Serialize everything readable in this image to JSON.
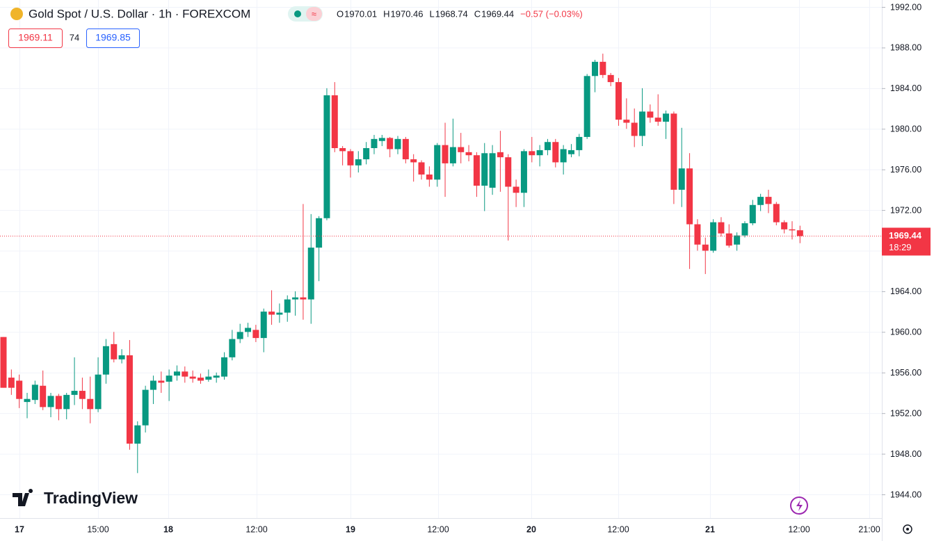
{
  "chart_data": {
    "type": "candlestick",
    "title": "Gold Spot / U.S. Dollar · 1h · FOREXCOM",
    "ohlc": [
      {
        "label": "O",
        "value": 1970.01
      },
      {
        "label": "H",
        "value": 1970.46
      },
      {
        "label": "L",
        "value": 1968.74
      },
      {
        "label": "C",
        "value": 1969.44
      }
    ],
    "change": "−0.57 (−0.03%)",
    "bid": 1969.11,
    "spread": 74,
    "ask": 1969.85,
    "countdown": "18:29",
    "watermark": "TradingView",
    "up_color": "#089981",
    "down_color": "#f23645",
    "x_labels": [
      "17",
      "15:00",
      "18",
      "12:00",
      "19",
      "12:00",
      "20",
      "12:00",
      "21",
      "12:00",
      "21:00"
    ],
    "ylim": [
      1944,
      1992
    ],
    "yticks": [
      {
        "value": 1944,
        "label": "1944.00"
      },
      {
        "value": 1948,
        "label": "1948.00"
      },
      {
        "value": 1952,
        "label": "1952.00"
      },
      {
        "value": 1956,
        "label": "1956.00"
      },
      {
        "value": 1960,
        "label": "1960.00"
      },
      {
        "value": 1964,
        "label": "1964.00"
      },
      {
        "value": 1968,
        "label": "1968.00"
      },
      {
        "value": 1972,
        "label": "1972.00"
      },
      {
        "value": 1976,
        "label": "1976.00"
      },
      {
        "value": 1980,
        "label": "1980.00"
      },
      {
        "value": 1984,
        "label": "1984.00"
      },
      {
        "value": 1988,
        "label": "1988.00"
      },
      {
        "value": 1992,
        "label": "1992.00"
      }
    ],
    "grid": true,
    "open": [
      1959.5,
      1955.5,
      1955.2,
      1953.1,
      1953.3,
      1954.7,
      1952.6,
      1953.7,
      1952.4,
      1953.8,
      1954.2,
      1953.4,
      1952.4,
      1955.8,
      1958.8,
      1957.3,
      1957.7,
      1949.0,
      1950.8,
      1954.3,
      1955.2,
      1955.1,
      1955.7,
      1956.1,
      1955.6,
      1955.5,
      1955.3,
      1955.5,
      1955.6,
      1957.5,
      1959.3,
      1960.0,
      1960.2,
      1959.4,
      1962.0,
      1961.7,
      1961.9,
      1963.2,
      1963.4,
      1963.2,
      1968.3,
      1971.2,
      1983.3,
      1978.1,
      1977.8,
      1976.4,
      1977.0,
      1978.1,
      1978.8,
      1979.1,
      1978.0,
      1979.0,
      1977.0,
      1976.7,
      1975.5,
      1975.0,
      1978.4,
      1976.6,
      1978.2,
      1977.7,
      1977.4,
      1974.4,
      1974.2,
      1977.7,
      1977.2,
      1974.3,
      1973.7,
      1977.8,
      1977.4,
      1977.9,
      1978.7,
      1976.7,
      1977.5,
      1977.9,
      1979.2,
      1985.2,
      1986.6,
      1985.3,
      1984.6,
      1980.9,
      1980.6,
      1979.3,
      1981.7,
      1981.1,
      1980.7,
      1981.5,
      1974.0,
      1976.1,
      1970.6,
      1968.6,
      1968.0,
      1970.8,
      1969.7,
      1968.6,
      1969.5,
      1970.7,
      1972.5,
      1973.3,
      1972.6,
      1970.8,
      1970.1,
      1970.01
    ],
    "high": [
      1959.5,
      1956.3,
      1955.8,
      1954.0,
      1955.2,
      1956.2,
      1954.0,
      1953.9,
      1954.0,
      1957.5,
      1955.5,
      1955.6,
      1957.5,
      1959.3,
      1960.0,
      1958.3,
      1959.2,
      1951.2,
      1954.7,
      1955.7,
      1956.1,
      1956.3,
      1956.7,
      1956.6,
      1956.2,
      1955.9,
      1956.3,
      1956.0,
      1958.0,
      1960.2,
      1960.8,
      1960.9,
      1960.7,
      1962.3,
      1964.1,
      1962.8,
      1963.6,
      1964.0,
      1972.6,
      1971.6,
      1971.4,
      1984.0,
      1984.6,
      1978.3,
      1978.0,
      1977.8,
      1978.7,
      1979.4,
      1979.4,
      1979.2,
      1979.3,
      1979.2,
      1977.5,
      1976.9,
      1976.3,
      1978.6,
      1980.6,
      1981.0,
      1979.6,
      1978.4,
      1977.7,
      1978.6,
      1978.4,
      1979.8,
      1977.5,
      1975.0,
      1978.0,
      1979.2,
      1978.4,
      1979.0,
      1979.0,
      1978.4,
      1978.5,
      1979.5,
      1985.4,
      1986.8,
      1987.4,
      1985.5,
      1985.0,
      1983.0,
      1982.0,
      1984.0,
      1982.4,
      1983.4,
      1981.8,
      1981.7,
      1980.1,
      1977.6,
      1971.1,
      1969.3,
      1971.1,
      1971.3,
      1970.6,
      1969.8,
      1970.9,
      1973.0,
      1973.6,
      1974.0,
      1972.8,
      1971.0,
      1970.9,
      1970.46
    ],
    "low": [
      1954.5,
      1953.8,
      1952.5,
      1951.5,
      1952.9,
      1952.3,
      1951.6,
      1951.3,
      1951.4,
      1952.8,
      1952.4,
      1951.0,
      1952.1,
      1954.9,
      1957.0,
      1956.9,
      1948.4,
      1946.1,
      1950.1,
      1952.9,
      1954.0,
      1953.2,
      1955.2,
      1955.0,
      1955.0,
      1954.9,
      1955.1,
      1955.0,
      1955.3,
      1957.2,
      1958.9,
      1959.5,
      1959.0,
      1958.0,
      1960.7,
      1960.9,
      1961.0,
      1961.6,
      1961.2,
      1960.8,
      1965.0,
      1971.0,
      1977.7,
      1976.4,
      1975.2,
      1975.7,
      1976.5,
      1977.5,
      1978.3,
      1977.2,
      1977.5,
      1976.6,
      1974.8,
      1975.0,
      1974.3,
      1974.3,
      1973.3,
      1976.3,
      1976.6,
      1976.8,
      1973.3,
      1971.9,
      1973.5,
      1973.8,
      1969.0,
      1972.3,
      1972.3,
      1976.7,
      1976.3,
      1977.4,
      1976.2,
      1975.5,
      1977.2,
      1977.3,
      1979.0,
      1983.6,
      1985.0,
      1984.2,
      1980.3,
      1980.0,
      1978.2,
      1978.3,
      1980.6,
      1980.3,
      1979.0,
      1972.6,
      1972.3,
      1966.2,
      1968.0,
      1965.7,
      1967.8,
      1969.4,
      1968.3,
      1968.0,
      1969.3,
      1970.5,
      1971.9,
      1971.7,
      1970.5,
      1969.7,
      1969.1,
      1968.74
    ],
    "close": [
      1954.5,
      1954.5,
      1953.4,
      1953.4,
      1954.8,
      1952.6,
      1953.7,
      1952.4,
      1953.8,
      1954.2,
      1953.4,
      1952.4,
      1955.8,
      1958.6,
      1957.3,
      1957.7,
      1949.0,
      1950.8,
      1954.3,
      1955.2,
      1955.0,
      1955.7,
      1956.1,
      1955.6,
      1955.4,
      1955.2,
      1955.6,
      1955.7,
      1957.5,
      1959.3,
      1960.0,
      1960.4,
      1959.4,
      1962.0,
      1961.7,
      1961.9,
      1963.2,
      1963.4,
      1963.2,
      1968.3,
      1971.2,
      1983.3,
      1978.1,
      1977.8,
      1976.4,
      1977.0,
      1978.1,
      1979.0,
      1979.1,
      1978.0,
      1979.0,
      1977.0,
      1976.7,
      1975.5,
      1975.0,
      1978.4,
      1976.6,
      1978.2,
      1977.7,
      1977.4,
      1974.4,
      1977.6,
      1977.6,
      1977.2,
      1974.3,
      1973.7,
      1977.8,
      1977.4,
      1977.9,
      1978.7,
      1976.7,
      1978.0,
      1977.9,
      1979.2,
      1985.2,
      1986.6,
      1985.3,
      1984.6,
      1980.9,
      1980.6,
      1979.3,
      1981.7,
      1981.1,
      1980.7,
      1981.5,
      1974.0,
      1976.1,
      1970.6,
      1968.6,
      1968.0,
      1970.8,
      1969.7,
      1968.5,
      1969.5,
      1970.7,
      1972.5,
      1973.3,
      1972.6,
      1970.8,
      1970.1,
      1970.0,
      1969.44
    ]
  }
}
